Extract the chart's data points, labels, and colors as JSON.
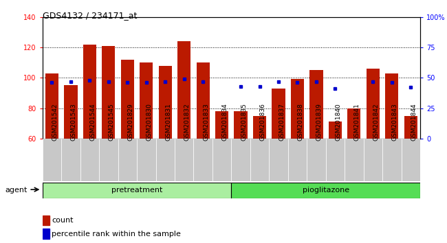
{
  "title": "GDS4132 / 234171_at",
  "categories": [
    "GSM201542",
    "GSM201543",
    "GSM201544",
    "GSM201545",
    "GSM201829",
    "GSM201830",
    "GSM201831",
    "GSM201832",
    "GSM201833",
    "GSM201834",
    "GSM201835",
    "GSM201836",
    "GSM201837",
    "GSM201838",
    "GSM201839",
    "GSM201840",
    "GSM201841",
    "GSM201842",
    "GSM201843",
    "GSM201844"
  ],
  "bar_values": [
    103,
    95,
    122,
    121,
    112,
    110,
    108,
    124,
    110,
    78,
    78,
    75,
    93,
    99,
    105,
    71,
    80,
    106,
    103,
    75
  ],
  "blue_dot_percentile": [
    46,
    47,
    48,
    47,
    46,
    46,
    47,
    49,
    47,
    null,
    43,
    43,
    47,
    46,
    47,
    41,
    null,
    47,
    46,
    42
  ],
  "ylim_left": [
    60,
    140
  ],
  "ylim_right": [
    0,
    100
  ],
  "yticks_left": [
    60,
    80,
    100,
    120,
    140
  ],
  "yticks_right": [
    0,
    25,
    50,
    75,
    100
  ],
  "bar_color": "#bb1a00",
  "dot_color": "#0000cc",
  "bg_color": "#ffffff",
  "group_labels": [
    "pretreatment",
    "pioglitazone"
  ],
  "group_colors": [
    "#aaeea0",
    "#55dd55"
  ],
  "legend_items": [
    "count",
    "percentile rank within the sample"
  ],
  "title_fontsize": 9,
  "tick_fontsize": 7
}
